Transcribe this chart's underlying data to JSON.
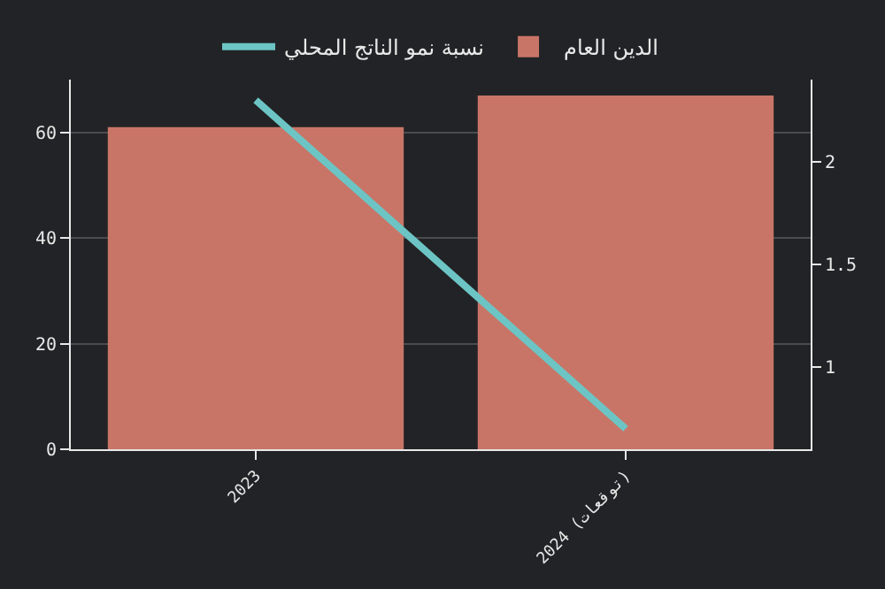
{
  "chart_data": {
    "type": "bar",
    "categories": [
      "2023",
      "2024 (توقعات)"
    ],
    "series": [
      {
        "name": "الدين العام",
        "color": "#c87567",
        "values": [
          61,
          67
        ]
      },
      {
        "name": "نسبة نمو الناتج المحلي",
        "type": "line",
        "axis": "y2",
        "color": "#6cc5c4",
        "values": [
          2.3,
          0.7
        ]
      }
    ],
    "ylim": [
      0,
      70
    ],
    "yticks": [
      0,
      20,
      40,
      60
    ],
    "y2lim": [
      0.6,
      2.4
    ],
    "y2ticks": [
      1,
      1.5,
      2
    ],
    "grid": "y",
    "legend": "top",
    "marker": "none",
    "line_style": "solid"
  }
}
